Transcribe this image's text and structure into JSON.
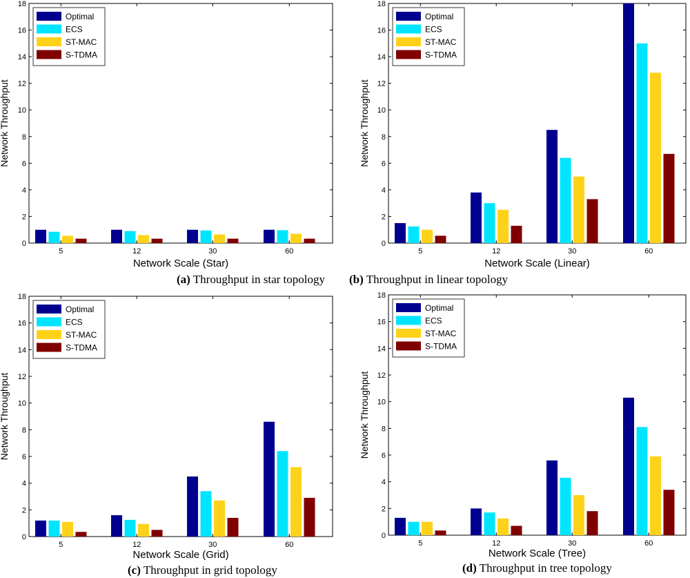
{
  "series_colors": {
    "Optimal": "#00008f",
    "ECS": "#00e5ff",
    "ST-MAC": "#ffd21a",
    "S-TDMA": "#800000"
  },
  "chart_data": [
    {
      "type": "bar",
      "xlabel": "Network Scale (Star)",
      "ylabel": "Network Throughput",
      "ylim": [
        0,
        18
      ],
      "yticks": [
        "0",
        "2",
        "4",
        "6",
        "8",
        "10",
        "12",
        "14",
        "16",
        "18"
      ],
      "categories": [
        "5",
        "12",
        "30",
        "60"
      ],
      "legend_position": "top-left",
      "series": [
        {
          "name": "Optimal",
          "values": [
            1.0,
            1.0,
            1.0,
            1.0
          ]
        },
        {
          "name": "ECS",
          "values": [
            0.85,
            0.9,
            0.95,
            0.97
          ]
        },
        {
          "name": "ST-MAC",
          "values": [
            0.55,
            0.6,
            0.65,
            0.7
          ]
        },
        {
          "name": "S-TDMA",
          "values": [
            0.33,
            0.33,
            0.33,
            0.33
          ]
        }
      ],
      "caption_label": "(a)",
      "caption_text": " Throughput in star topology"
    },
    {
      "type": "bar",
      "xlabel": "Network Scale (Linear)",
      "ylabel": "Network Throughput",
      "ylim": [
        0,
        18
      ],
      "yticks": [
        "0",
        "2",
        "4",
        "6",
        "8",
        "10",
        "12",
        "14",
        "16",
        "18"
      ],
      "categories": [
        "5",
        "12",
        "30",
        "60"
      ],
      "legend_position": "top-left",
      "series": [
        {
          "name": "Optimal",
          "values": [
            1.5,
            3.8,
            8.5,
            18.0
          ]
        },
        {
          "name": "ECS",
          "values": [
            1.25,
            3.0,
            6.4,
            15.0
          ]
        },
        {
          "name": "ST-MAC",
          "values": [
            1.0,
            2.5,
            5.0,
            12.8
          ]
        },
        {
          "name": "S-TDMA",
          "values": [
            0.55,
            1.3,
            3.3,
            6.7
          ]
        }
      ],
      "caption_label": "(b)",
      "caption_text": " Throughput in linear topology"
    },
    {
      "type": "bar",
      "xlabel": "Network Scale (Grid)",
      "ylabel": "Network Throughput",
      "ylim": [
        0,
        18
      ],
      "yticks": [
        "0",
        "2",
        "4",
        "6",
        "8",
        "10",
        "12",
        "14",
        "16",
        "18"
      ],
      "categories": [
        "5",
        "12",
        "30",
        "60"
      ],
      "legend_position": "top-left",
      "series": [
        {
          "name": "Optimal",
          "values": [
            1.2,
            1.6,
            4.5,
            8.6
          ]
        },
        {
          "name": "ECS",
          "values": [
            1.2,
            1.25,
            3.4,
            6.4
          ]
        },
        {
          "name": "ST-MAC",
          "values": [
            1.1,
            0.95,
            2.7,
            5.2
          ]
        },
        {
          "name": "S-TDMA",
          "values": [
            0.35,
            0.5,
            1.4,
            2.9
          ]
        }
      ],
      "caption_label": "(c)",
      "caption_text": " Throughput in grid topology"
    },
    {
      "type": "bar",
      "xlabel": "Network Scale (Tree)",
      "ylabel": "Network Throughput",
      "ylim": [
        0,
        18
      ],
      "yticks": [
        "0",
        "2",
        "4",
        "6",
        "8",
        "10",
        "12",
        "14",
        "16",
        "18"
      ],
      "categories": [
        "5",
        "12",
        "30",
        "60"
      ],
      "legend_position": "top-left",
      "series": [
        {
          "name": "Optimal",
          "values": [
            1.3,
            2.0,
            5.6,
            10.3
          ]
        },
        {
          "name": "ECS",
          "values": [
            1.0,
            1.7,
            4.3,
            8.1
          ]
        },
        {
          "name": "ST-MAC",
          "values": [
            1.0,
            1.25,
            3.0,
            5.9
          ]
        },
        {
          "name": "S-TDMA",
          "values": [
            0.35,
            0.7,
            1.8,
            3.4
          ]
        }
      ],
      "caption_label": "(d)",
      "caption_text": " Throughput in tree topology"
    }
  ]
}
